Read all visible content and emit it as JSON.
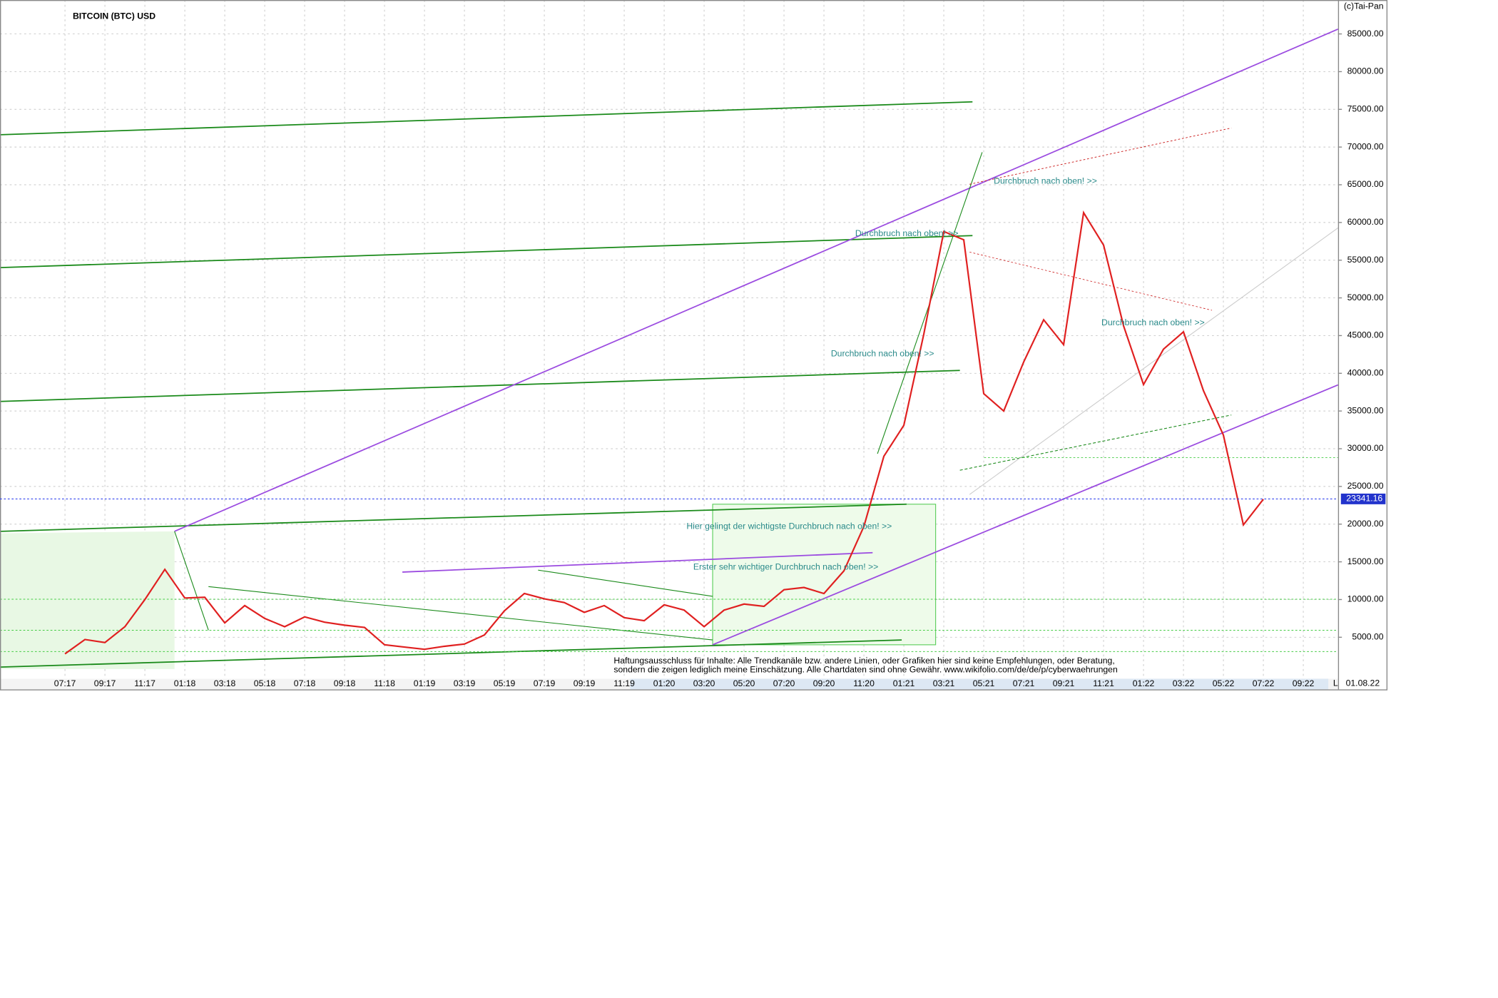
{
  "chart_data": {
    "type": "line",
    "title": "BITCOIN (BTC) USD",
    "copyright": "(c)Tai-Pan",
    "date_stamp": "01.08.22",
    "axis_flag": "L",
    "categories": [
      "07:17",
      null,
      "09:17",
      null,
      "11:17",
      null,
      "01:18",
      null,
      "03:18",
      null,
      "05:18",
      null,
      "07:18",
      null,
      "09:18",
      null,
      "11:18",
      null,
      "01:19",
      null,
      "03:19",
      null,
      "05:19",
      null,
      "07:19",
      null,
      "09:19",
      null,
      "11:19",
      null,
      "01:20",
      null,
      "03:20",
      null,
      "05:20",
      null,
      "07:20",
      null,
      "09:20",
      null,
      "11:20",
      null,
      "01:21",
      null,
      "03:21",
      null,
      "05:21",
      null,
      "07:21",
      null,
      "09:21",
      null,
      "11:21",
      null,
      "01:22",
      null,
      "03:22",
      null,
      "05:22",
      null,
      "07:22",
      null,
      "09:22"
    ],
    "series": [
      {
        "name": "BTC",
        "color": "#e02020",
        "values": [
          2800,
          4700,
          4300,
          6400,
          10000,
          14000,
          10200,
          10300,
          6900,
          9200,
          7500,
          6400,
          7700,
          7000,
          6600,
          6300,
          4000,
          3700,
          3400,
          3800,
          4100,
          5300,
          8500,
          10800,
          10100,
          9600,
          8300,
          9200,
          7600,
          7200,
          9300,
          8600,
          6400,
          8600,
          9400,
          9100,
          11300,
          11600,
          10800,
          13800,
          19700,
          29000,
          33100,
          45200,
          58800,
          57700,
          37300,
          35000,
          41500,
          47100,
          43800,
          61300,
          57000,
          46300,
          38500,
          43200,
          45500,
          37700,
          31800,
          19900,
          23300,
          null,
          null
        ]
      }
    ],
    "last_price": 23341.16,
    "ylim": [
      -500,
      89500
    ],
    "yticks": [
      {
        "value": 5000,
        "label": "5000.00"
      },
      {
        "value": 10000,
        "label": "10000.00"
      },
      {
        "value": 15000,
        "label": "15000.00"
      },
      {
        "value": 20000,
        "label": "20000.00"
      },
      {
        "value": 25000,
        "label": "25000.00"
      },
      {
        "value": 30000,
        "label": "30000.00"
      },
      {
        "value": 35000,
        "label": "35000.00"
      },
      {
        "value": 40000,
        "label": "40000.00"
      },
      {
        "value": 45000,
        "label": "45000.00"
      },
      {
        "value": 50000,
        "label": "50000.00"
      },
      {
        "value": 55000,
        "label": "55000.00"
      },
      {
        "value": 60000,
        "label": "60000.00"
      },
      {
        "value": 65000,
        "label": "65000.00"
      },
      {
        "value": 70000,
        "label": "70000.00"
      },
      {
        "value": 75000,
        "label": "75000.00"
      },
      {
        "value": 80000,
        "label": "80000.00"
      },
      {
        "value": 85000,
        "label": "85000.00"
      }
    ],
    "grid": true,
    "annotations": [
      "Durchbruch nach oben! >>",
      "Durchbruch nach oben! >>",
      "Durchbruch nach oben! >>",
      "Durchbruch nach oben! >>",
      "Hier gelingt der wichtigste Durchbruch nach oben! >>",
      "Erster sehr wichtiger Durchbruch nach oben! >>"
    ],
    "disclaimer": [
      "Haftungsausschluss für Inhalte: Alle Trendkanäle bzw. andere Linien, oder Grafiken hier sind keine Empfehlungen, oder Beratung,",
      "sondern die zeigen lediglich meine  Einschätzung. Alle Chartdaten sind ohne Gewähr.  www.wikifolio.com/de/de/p/cyberwaehrungen"
    ]
  }
}
